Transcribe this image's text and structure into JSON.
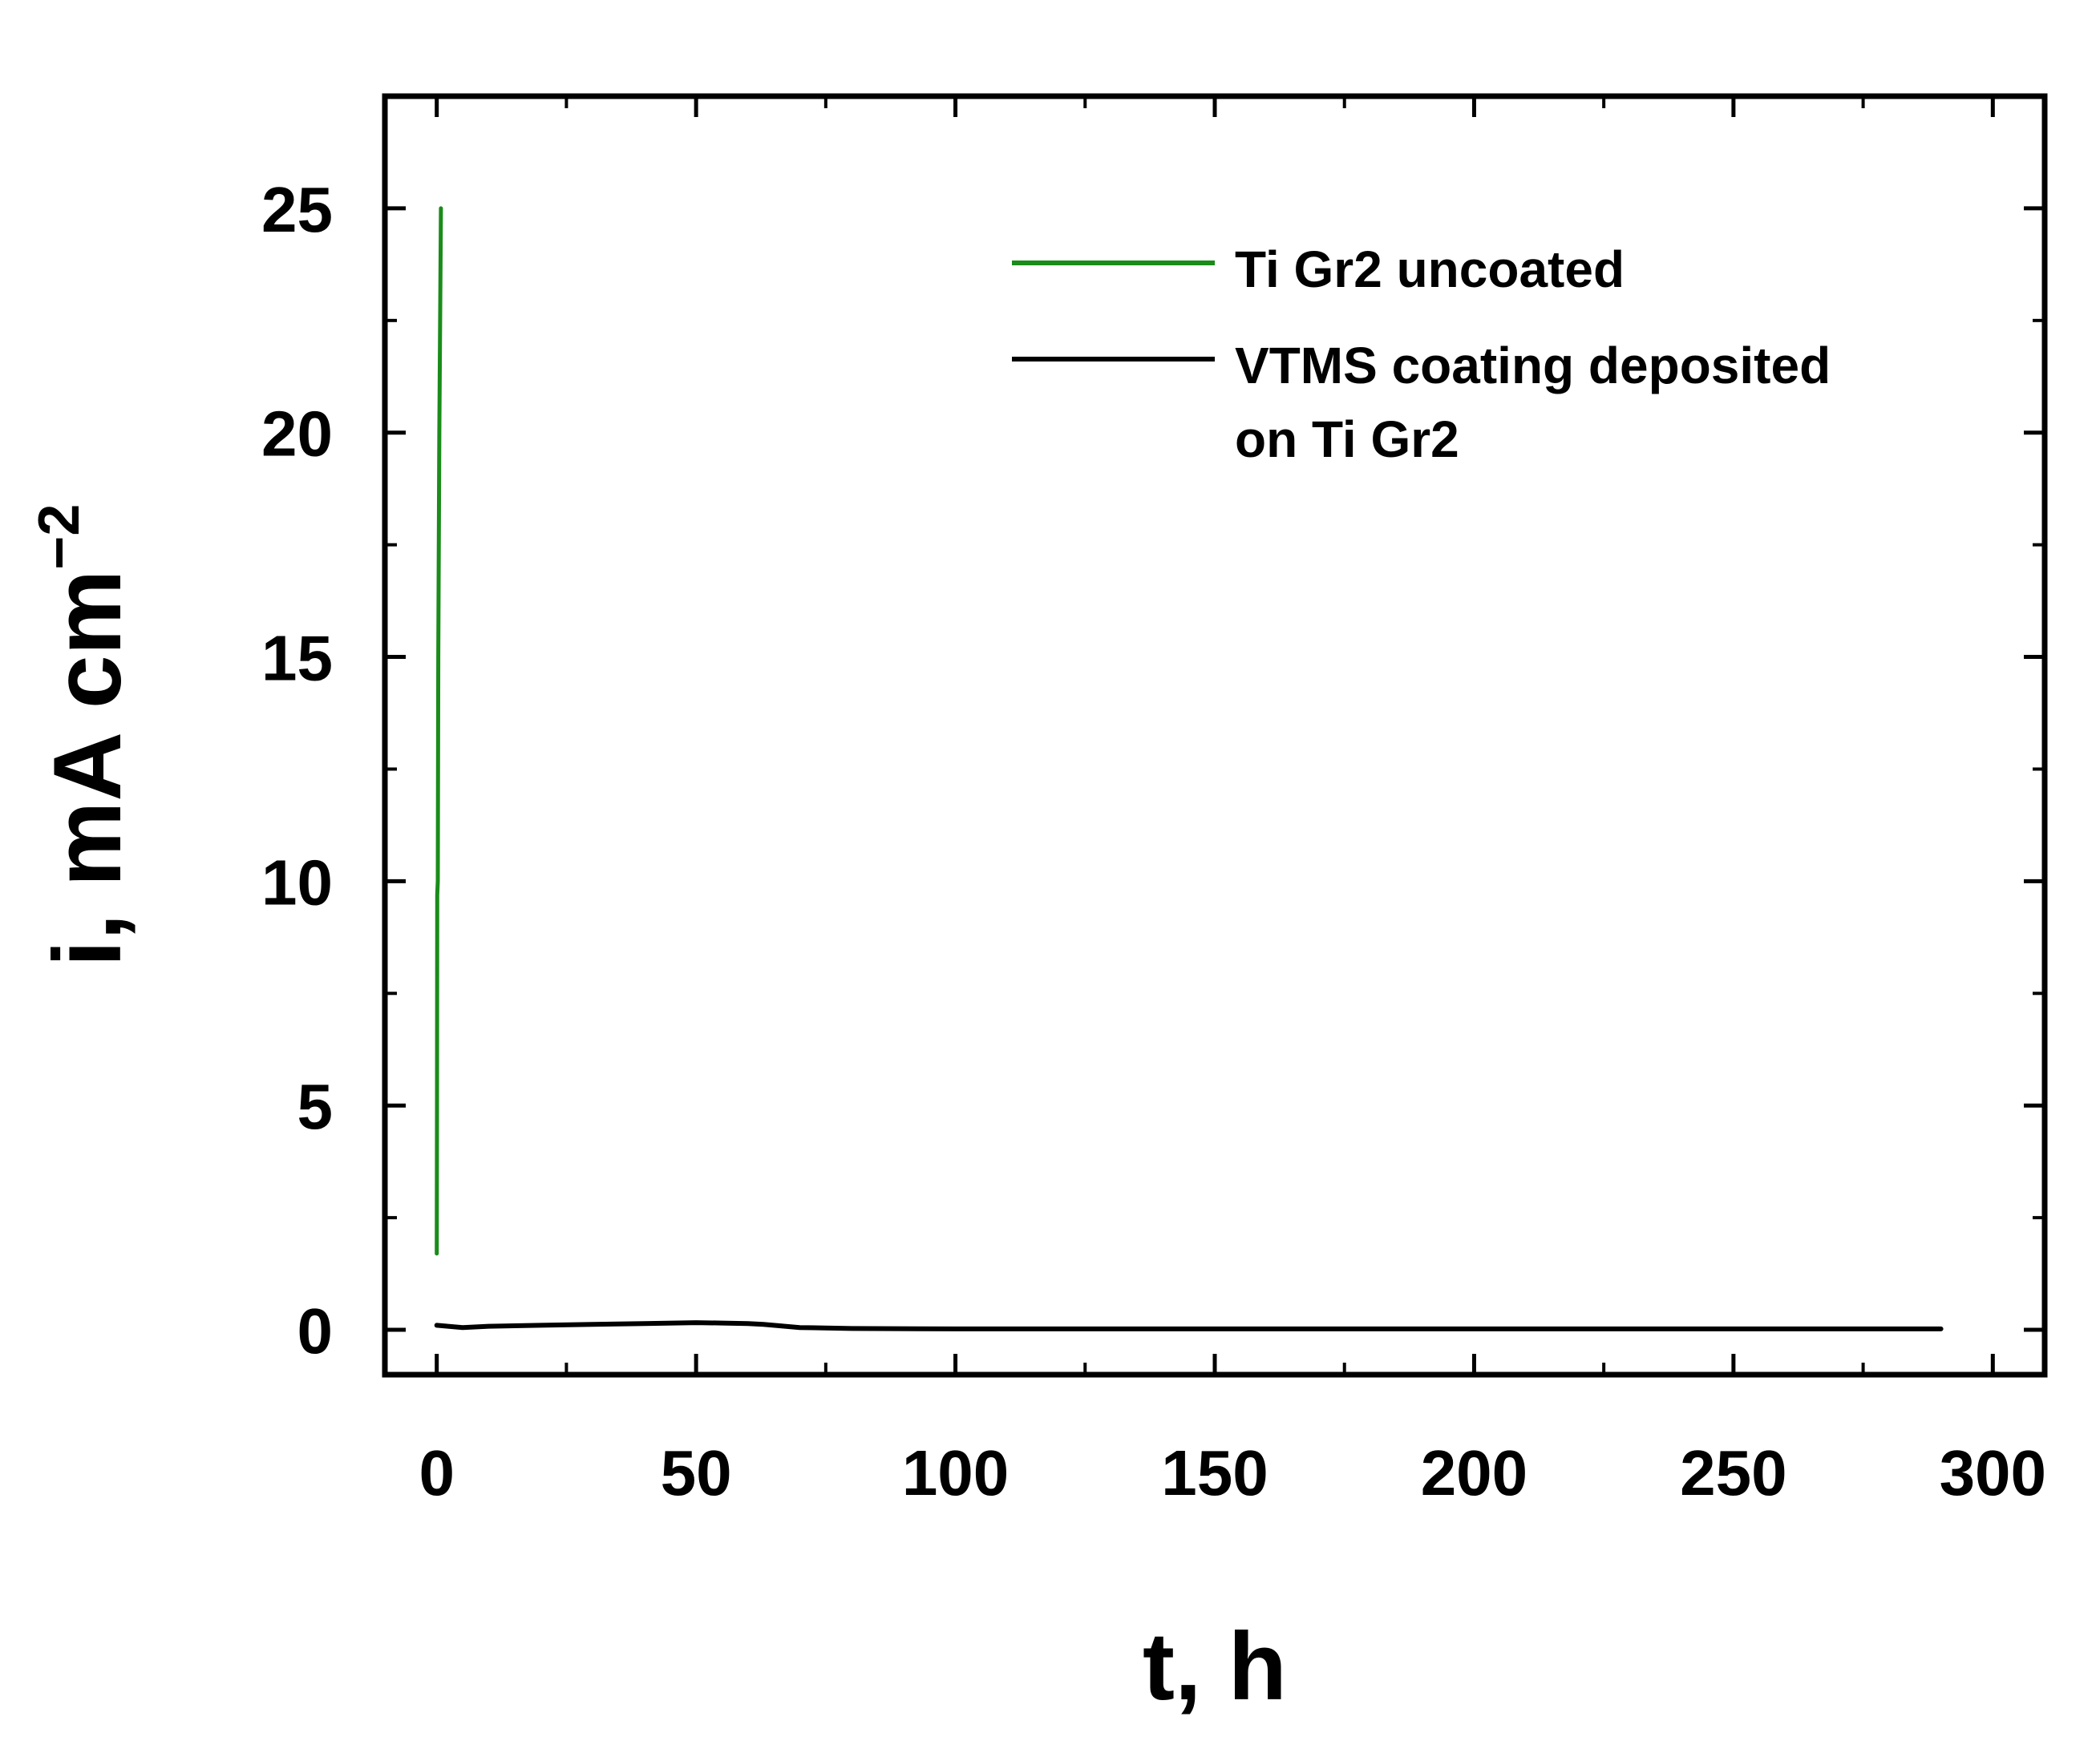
{
  "chart_data": {
    "type": "line",
    "title": "",
    "xlabel": "t, h",
    "ylabel": "i, mA cm",
    "ylabel_superscript": "−2",
    "xlim": [
      -10,
      310
    ],
    "ylim": [
      -1,
      27.5
    ],
    "xticks": [
      0,
      50,
      100,
      150,
      200,
      250,
      300
    ],
    "yticks": [
      0,
      5,
      10,
      15,
      20,
      25
    ],
    "grid": false,
    "legend_position": "top-right",
    "series": [
      {
        "name": "Ti Gr2 uncoated",
        "label_lines": [
          "Ti Gr2 uncoated"
        ],
        "color": "#1a8c1a",
        "x": [
          0.0,
          0.05,
          0.1,
          0.2,
          0.3,
          0.5,
          0.8
        ],
        "y": [
          1.7,
          5.0,
          9.7,
          10.0,
          15.0,
          20.0,
          25.0
        ]
      },
      {
        "name": "VTMS coating deposited on Ti Gr2",
        "label_lines": [
          "VTMS coating deposited",
          "on Ti Gr2"
        ],
        "color": "#000000",
        "x": [
          0,
          5,
          10,
          20,
          30,
          40,
          50,
          55,
          60,
          63,
          70,
          80,
          100,
          150,
          200,
          250,
          290
        ],
        "y": [
          0.1,
          0.05,
          0.08,
          0.1,
          0.12,
          0.14,
          0.16,
          0.15,
          0.14,
          0.12,
          0.05,
          0.03,
          0.02,
          0.02,
          0.02,
          0.02,
          0.02
        ]
      }
    ]
  }
}
